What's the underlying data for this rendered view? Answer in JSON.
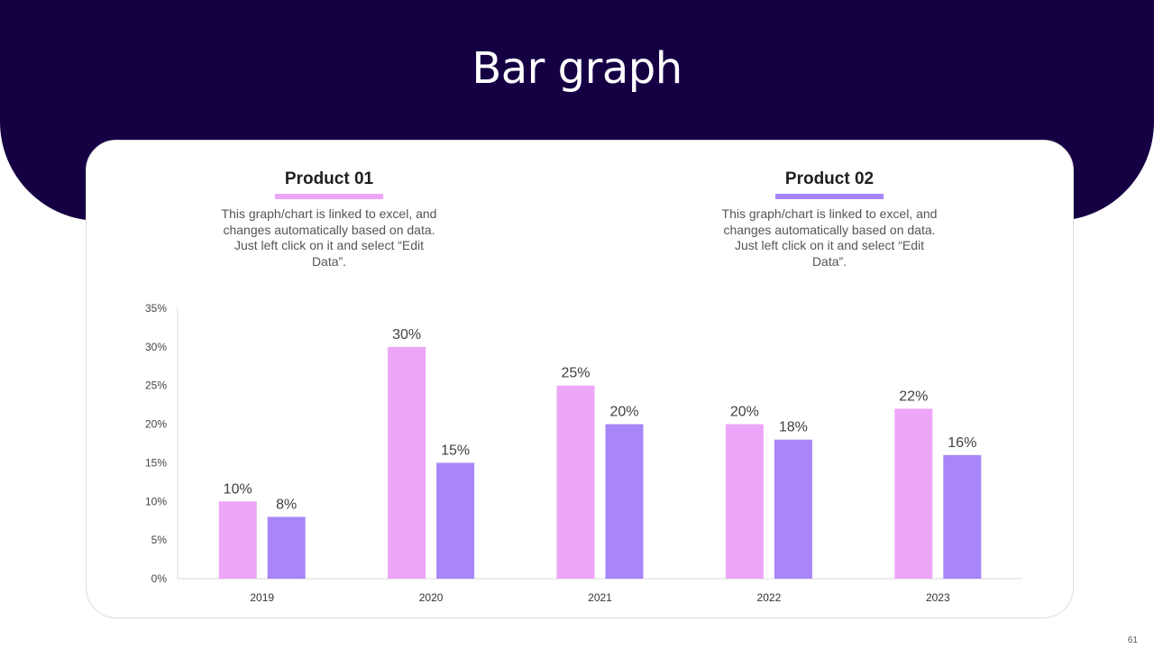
{
  "title": "Bar graph",
  "colors": {
    "header_bg": "#150044",
    "product01": "#EDA6F8",
    "product02": "#A885F8"
  },
  "legend": [
    {
      "name": "Product 01",
      "description": "This graph/chart is linked to excel, and changes automatically based on data. Just left click on it and select “Edit Data”."
    },
    {
      "name": "Product 02",
      "description": "This graph/chart is linked to excel, and changes automatically based on data. Just left click on it and select “Edit Data”."
    }
  ],
  "page_number": "61",
  "chart_data": {
    "type": "bar",
    "categories": [
      "2019",
      "2020",
      "2021",
      "2022",
      "2023"
    ],
    "series": [
      {
        "name": "Product 01",
        "values": [
          10,
          30,
          25,
          20,
          22
        ],
        "labels": [
          "10%",
          "30%",
          "25%",
          "20%",
          "22%"
        ]
      },
      {
        "name": "Product 02",
        "values": [
          8,
          15,
          20,
          18,
          16
        ],
        "labels": [
          "8%",
          "15%",
          "20%",
          "18%",
          "16%"
        ]
      }
    ],
    "yticks": [
      "0%",
      "5%",
      "10%",
      "15%",
      "20%",
      "25%",
      "30%",
      "35%"
    ],
    "ylim": [
      0,
      35
    ],
    "ystep": 5,
    "xlabel": "",
    "ylabel": "",
    "grid": false
  }
}
